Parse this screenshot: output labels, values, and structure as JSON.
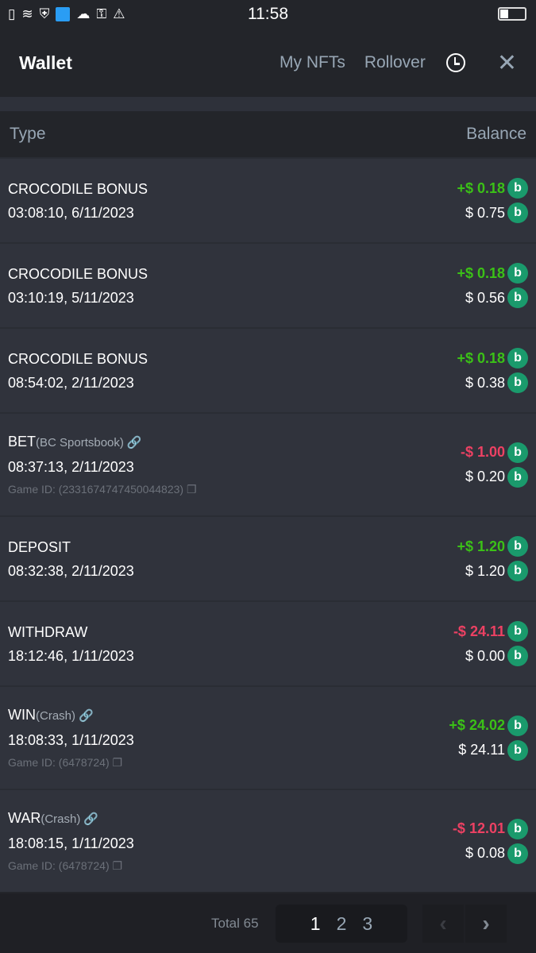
{
  "status": {
    "time": "11:58"
  },
  "header": {
    "title": "Wallet",
    "my_nfts": "My NFTs",
    "rollover": "Rollover"
  },
  "table": {
    "col_type": "Type",
    "col_balance": "Balance"
  },
  "rows": [
    {
      "type": "CROCODILE BONUS",
      "sub": "",
      "date": "03:08:10, 6/11/2023",
      "game_id": "",
      "change": "+$ 0.18",
      "balance": "$ 0.75",
      "sign": "pos"
    },
    {
      "type": "CROCODILE BONUS",
      "sub": "",
      "date": "03:10:19, 5/11/2023",
      "game_id": "",
      "change": "+$ 0.18",
      "balance": "$ 0.56",
      "sign": "pos"
    },
    {
      "type": "CROCODILE BONUS",
      "sub": "",
      "date": "08:54:02, 2/11/2023",
      "game_id": "",
      "change": "+$ 0.18",
      "balance": "$ 0.38",
      "sign": "pos"
    },
    {
      "type": "BET",
      "sub": "(BC Sportsbook)",
      "date": "08:37:13, 2/11/2023",
      "game_id": "Game ID: (2331674747450044823)",
      "change": "-$ 1.00",
      "balance": "$ 0.20",
      "sign": "neg"
    },
    {
      "type": "DEPOSIT",
      "sub": "",
      "date": "08:32:38, 2/11/2023",
      "game_id": "",
      "change": "+$ 1.20",
      "balance": "$ 1.20",
      "sign": "pos"
    },
    {
      "type": "WITHDRAW",
      "sub": "",
      "date": "18:12:46, 1/11/2023",
      "game_id": "",
      "change": "-$ 24.11",
      "balance": "$ 0.00",
      "sign": "neg"
    },
    {
      "type": "WIN",
      "sub": "(Crash)",
      "date": "18:08:33, 1/11/2023",
      "game_id": "Game ID: (6478724)",
      "change": "+$ 24.02",
      "balance": "$ 24.11",
      "sign": "pos"
    },
    {
      "type": "WAR",
      "sub": "(Crash)",
      "date": "18:08:15, 1/11/2023",
      "game_id": "Game ID: (6478724)",
      "change": "-$ 12.01",
      "balance": "$ 0.08",
      "sign": "neg"
    }
  ],
  "footer": {
    "total": "Total 65",
    "pages": [
      "1",
      "2",
      "3"
    ],
    "current_page": "1"
  },
  "colors": {
    "positive": "#3bc117",
    "negative": "#ed4163",
    "coin": "#1a9a6c"
  }
}
